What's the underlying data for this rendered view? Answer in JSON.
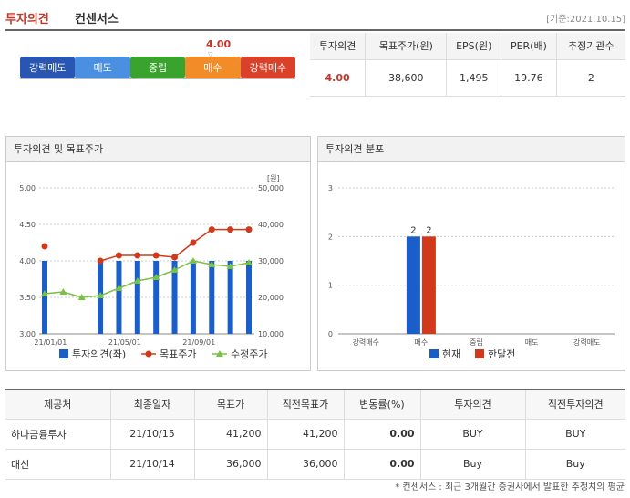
{
  "header": {
    "title": "투자의견",
    "title2": "컨센서스",
    "date": "[기준:2021.10.15]"
  },
  "consensus": {
    "current": "4.00",
    "current_value": 4.0,
    "scale": [
      {
        "label": "강력매도",
        "color": "#2a56b3"
      },
      {
        "label": "매도",
        "color": "#4b8fe0"
      },
      {
        "label": "중립",
        "color": "#3aa32e"
      },
      {
        "label": "매수",
        "color": "#f28c28"
      },
      {
        "label": "강력매수",
        "color": "#d9412a"
      }
    ]
  },
  "summary": {
    "headers": [
      "투자의견",
      "목표주가(원)",
      "EPS(원)",
      "PER(배)",
      "추정기관수"
    ],
    "values": [
      "4.00",
      "38,600",
      "1,495",
      "19.76",
      "2"
    ]
  },
  "panel1": {
    "title": "투자의견 및 목표주가"
  },
  "panel2": {
    "title": "투자의견 분포"
  },
  "chart_data": [
    {
      "type": "bar",
      "title": "투자의견 및 목표주가",
      "ylabel_left": "",
      "ylabel_right": "[원]",
      "ylim_left": [
        3.0,
        5.0
      ],
      "ylim_right": [
        10000,
        50000
      ],
      "yticks_left": [
        "5.00",
        "4.50",
        "4.00",
        "3.50",
        "3.00"
      ],
      "yticks_right": [
        "50,000",
        "40,000",
        "30,000",
        "20,000",
        "10,000"
      ],
      "xticks": [
        "21/01/01",
        "21/05/01",
        "21/09/01"
      ],
      "legend": [
        "투자의견(좌)",
        "목표주가",
        "수정주가"
      ],
      "opinion": [
        4.0,
        null,
        null,
        4.0,
        4.0,
        4.0,
        4.0,
        4.0,
        4.0,
        4.0,
        4.0,
        4.0
      ],
      "target_price": [
        34000,
        null,
        null,
        30000,
        31500,
        31500,
        31500,
        31000,
        35000,
        38600,
        38600,
        38600
      ],
      "price": [
        21000,
        21500,
        20000,
        20500,
        22500,
        24500,
        25500,
        27500,
        30000,
        29000,
        28500,
        29500
      ],
      "colors": {
        "bar": "#1a5fc9",
        "target": "#d03a1b",
        "price": "#7ac142"
      }
    },
    {
      "type": "bar",
      "title": "투자의견 분포",
      "categories": [
        "강력매수",
        "매수",
        "중립",
        "매도",
        "강력매도"
      ],
      "ylim": [
        0,
        3
      ],
      "yticks": [
        "3",
        "2",
        "1",
        "0"
      ],
      "series": [
        {
          "name": "현재",
          "values": [
            0,
            2,
            0,
            0,
            0
          ],
          "color": "#1a5fc9"
        },
        {
          "name": "한달전",
          "values": [
            0,
            2,
            0,
            0,
            0
          ],
          "color": "#d03a1b"
        }
      ]
    }
  ],
  "brokers": {
    "headers": [
      "제공처",
      "최종일자",
      "목표가",
      "직전목표가",
      "변동률(%)",
      "투자의견",
      "직전투자의견"
    ],
    "rows": [
      [
        "하나금융투자",
        "21/10/15",
        "41,200",
        "41,200",
        "0.00",
        "BUY",
        "BUY"
      ],
      [
        "대신",
        "21/10/14",
        "36,000",
        "36,000",
        "0.00",
        "Buy",
        "Buy"
      ]
    ]
  },
  "footnote": "* 컨센서스 : 최근 3개월간 증권사에서 발표한 추정치의 평균"
}
